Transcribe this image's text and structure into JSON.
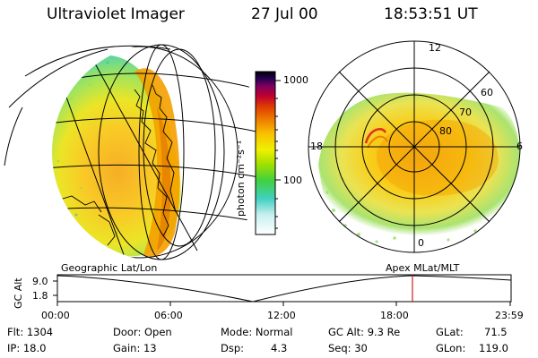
{
  "header": {
    "instrument": "Ultraviolet Imager",
    "date": "27 Jul 00",
    "time": "18:53:51 UT"
  },
  "colorbar": {
    "unit_label": "photon cm⁻²s⁻¹",
    "ticks": [
      "1000",
      "100"
    ]
  },
  "polar_plot": {
    "mlt_labels": [
      "12",
      "18",
      "6",
      "0"
    ],
    "lat_labels": [
      "60",
      "70",
      "80"
    ]
  },
  "projection_labels": {
    "left": "Geographic Lat/Lon",
    "right": "Apex MLat/MLT"
  },
  "altitude_plot": {
    "ylabel": "GC Alt",
    "yticks": [
      "9.0",
      "1.8"
    ],
    "xticks": [
      "00:00",
      "06:00",
      "12:00",
      "18:00",
      "23:59"
    ]
  },
  "info": {
    "flt": "Flt: 1304",
    "ip": "IP: 18.0",
    "door": "Door: Open",
    "gain": "Gain: 13",
    "mode": "Mode: Normal",
    "dsp_label": "Dsp:",
    "dsp_value": "4.3",
    "gc_alt": "GC Alt: 9.3 Re",
    "seq": "Seq: 30",
    "glat_label": "GLat:",
    "glat_value": "71.5",
    "glon_label": "GLon:",
    "glon_value": "119.0"
  }
}
